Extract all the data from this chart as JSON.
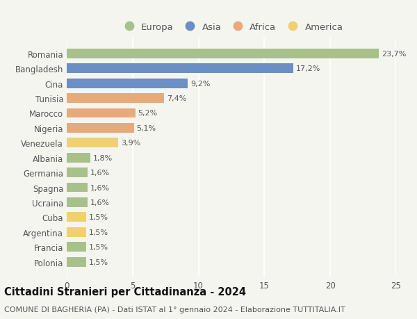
{
  "categories": [
    "Romania",
    "Bangladesh",
    "Cina",
    "Tunisia",
    "Marocco",
    "Nigeria",
    "Venezuela",
    "Albania",
    "Germania",
    "Spagna",
    "Ucraina",
    "Cuba",
    "Argentina",
    "Francia",
    "Polonia"
  ],
  "values": [
    23.7,
    17.2,
    9.2,
    7.4,
    5.2,
    5.1,
    3.9,
    1.8,
    1.6,
    1.6,
    1.6,
    1.5,
    1.5,
    1.5,
    1.5
  ],
  "labels": [
    "23,7%",
    "17,2%",
    "9,2%",
    "7,4%",
    "5,2%",
    "5,1%",
    "3,9%",
    "1,8%",
    "1,6%",
    "1,6%",
    "1,6%",
    "1,5%",
    "1,5%",
    "1,5%",
    "1,5%"
  ],
  "colors": [
    "#a8c08a",
    "#6b8fc4",
    "#6b8fc4",
    "#e8aa7a",
    "#e8aa7a",
    "#e8aa7a",
    "#f0d070",
    "#a8c08a",
    "#a8c08a",
    "#a8c08a",
    "#a8c08a",
    "#f0d070",
    "#f0d070",
    "#a8c08a",
    "#a8c08a"
  ],
  "legend_labels": [
    "Europa",
    "Asia",
    "Africa",
    "America"
  ],
  "legend_colors": [
    "#a8c08a",
    "#6b8fc4",
    "#e8aa7a",
    "#f0d070"
  ],
  "title": "Cittadini Stranieri per Cittadinanza - 2024",
  "subtitle": "COMUNE DI BAGHERIA (PA) - Dati ISTAT al 1° gennaio 2024 - Elaborazione TUTTITALIA.IT",
  "xlim": [
    0,
    25
  ],
  "xticks": [
    0,
    5,
    10,
    15,
    20,
    25
  ],
  "background_color": "#f5f5f0",
  "grid_color": "#ffffff",
  "bar_height": 0.65,
  "title_fontsize": 10.5,
  "subtitle_fontsize": 8,
  "label_fontsize": 8,
  "tick_fontsize": 8.5,
  "legend_fontsize": 9.5
}
